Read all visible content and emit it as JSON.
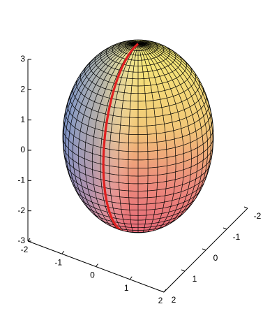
{
  "chart_data": {
    "type": "surface3d",
    "xlim": [
      -2,
      2
    ],
    "xticks": [
      -2,
      -1,
      0,
      1,
      2
    ],
    "ylim": [
      -2,
      2
    ],
    "yticks": [
      -2,
      -1,
      0,
      1,
      2
    ],
    "zlim": [
      -3,
      3
    ],
    "zticks": [
      -3,
      -2,
      -1,
      0,
      1,
      2,
      3
    ]
  }
}
